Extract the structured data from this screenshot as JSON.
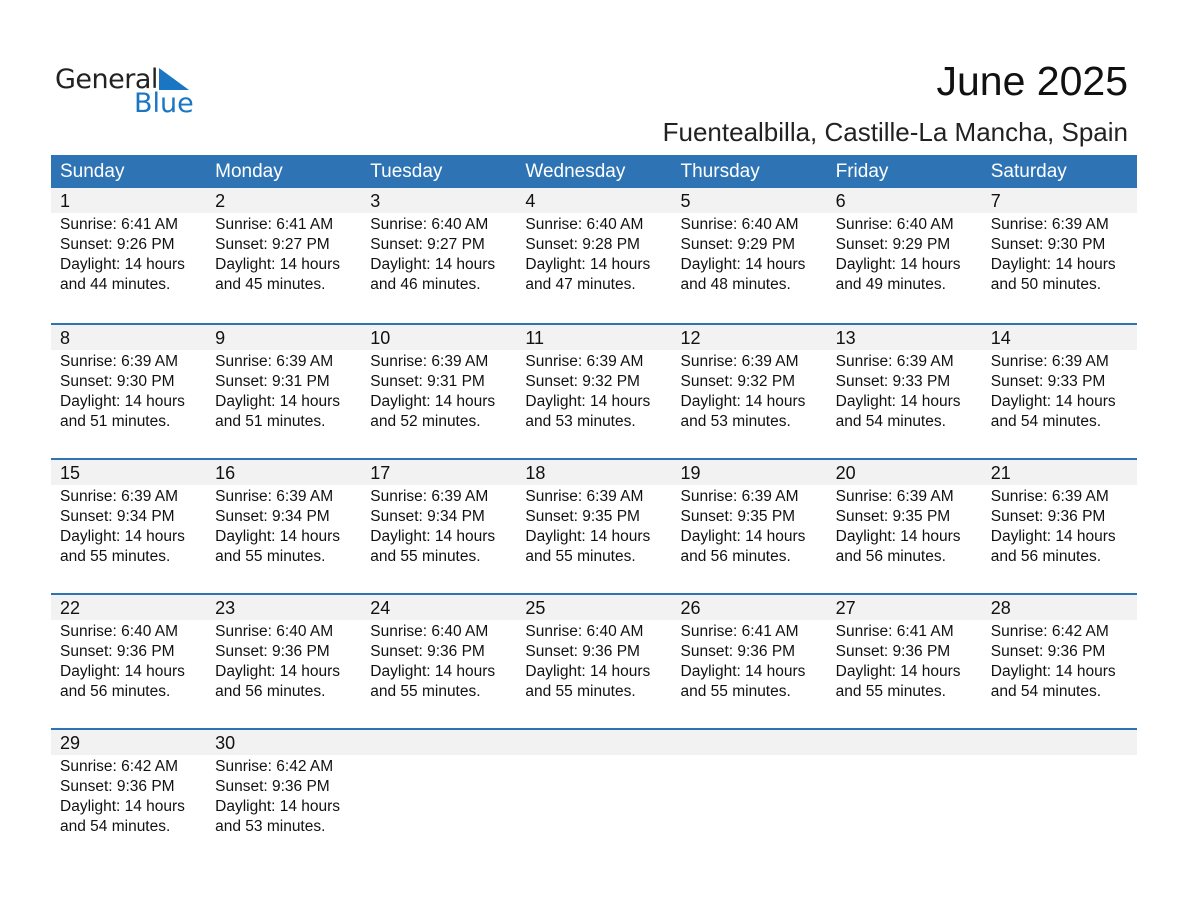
{
  "logo": {
    "line1": "General",
    "line2": "Blue",
    "accent": "#1a76c2"
  },
  "title": "June 2025",
  "subtitle": "Fuentealbilla, Castille-La Mancha, Spain",
  "colors": {
    "header": "#2e74b5",
    "band": "#f2f2f2"
  },
  "weekdays": [
    "Sunday",
    "Monday",
    "Tuesday",
    "Wednesday",
    "Thursday",
    "Friday",
    "Saturday"
  ],
  "weeks": [
    [
      {
        "day": "1",
        "sunrise": "Sunrise: 6:41 AM",
        "sunset": "Sunset: 9:26 PM",
        "daylight": "Daylight: 14 hours",
        "minutes": "and 44 minutes."
      },
      {
        "day": "2",
        "sunrise": "Sunrise: 6:41 AM",
        "sunset": "Sunset: 9:27 PM",
        "daylight": "Daylight: 14 hours",
        "minutes": "and 45 minutes."
      },
      {
        "day": "3",
        "sunrise": "Sunrise: 6:40 AM",
        "sunset": "Sunset: 9:27 PM",
        "daylight": "Daylight: 14 hours",
        "minutes": "and 46 minutes."
      },
      {
        "day": "4",
        "sunrise": "Sunrise: 6:40 AM",
        "sunset": "Sunset: 9:28 PM",
        "daylight": "Daylight: 14 hours",
        "minutes": "and 47 minutes."
      },
      {
        "day": "5",
        "sunrise": "Sunrise: 6:40 AM",
        "sunset": "Sunset: 9:29 PM",
        "daylight": "Daylight: 14 hours",
        "minutes": "and 48 minutes."
      },
      {
        "day": "6",
        "sunrise": "Sunrise: 6:40 AM",
        "sunset": "Sunset: 9:29 PM",
        "daylight": "Daylight: 14 hours",
        "minutes": "and 49 minutes."
      },
      {
        "day": "7",
        "sunrise": "Sunrise: 6:39 AM",
        "sunset": "Sunset: 9:30 PM",
        "daylight": "Daylight: 14 hours",
        "minutes": "and 50 minutes."
      }
    ],
    [
      {
        "day": "8",
        "sunrise": "Sunrise: 6:39 AM",
        "sunset": "Sunset: 9:30 PM",
        "daylight": "Daylight: 14 hours",
        "minutes": "and 51 minutes."
      },
      {
        "day": "9",
        "sunrise": "Sunrise: 6:39 AM",
        "sunset": "Sunset: 9:31 PM",
        "daylight": "Daylight: 14 hours",
        "minutes": "and 51 minutes."
      },
      {
        "day": "10",
        "sunrise": "Sunrise: 6:39 AM",
        "sunset": "Sunset: 9:31 PM",
        "daylight": "Daylight: 14 hours",
        "minutes": "and 52 minutes."
      },
      {
        "day": "11",
        "sunrise": "Sunrise: 6:39 AM",
        "sunset": "Sunset: 9:32 PM",
        "daylight": "Daylight: 14 hours",
        "minutes": "and 53 minutes."
      },
      {
        "day": "12",
        "sunrise": "Sunrise: 6:39 AM",
        "sunset": "Sunset: 9:32 PM",
        "daylight": "Daylight: 14 hours",
        "minutes": "and 53 minutes."
      },
      {
        "day": "13",
        "sunrise": "Sunrise: 6:39 AM",
        "sunset": "Sunset: 9:33 PM",
        "daylight": "Daylight: 14 hours",
        "minutes": "and 54 minutes."
      },
      {
        "day": "14",
        "sunrise": "Sunrise: 6:39 AM",
        "sunset": "Sunset: 9:33 PM",
        "daylight": "Daylight: 14 hours",
        "minutes": "and 54 minutes."
      }
    ],
    [
      {
        "day": "15",
        "sunrise": "Sunrise: 6:39 AM",
        "sunset": "Sunset: 9:34 PM",
        "daylight": "Daylight: 14 hours",
        "minutes": "and 55 minutes."
      },
      {
        "day": "16",
        "sunrise": "Sunrise: 6:39 AM",
        "sunset": "Sunset: 9:34 PM",
        "daylight": "Daylight: 14 hours",
        "minutes": "and 55 minutes."
      },
      {
        "day": "17",
        "sunrise": "Sunrise: 6:39 AM",
        "sunset": "Sunset: 9:34 PM",
        "daylight": "Daylight: 14 hours",
        "minutes": "and 55 minutes."
      },
      {
        "day": "18",
        "sunrise": "Sunrise: 6:39 AM",
        "sunset": "Sunset: 9:35 PM",
        "daylight": "Daylight: 14 hours",
        "minutes": "and 55 minutes."
      },
      {
        "day": "19",
        "sunrise": "Sunrise: 6:39 AM",
        "sunset": "Sunset: 9:35 PM",
        "daylight": "Daylight: 14 hours",
        "minutes": "and 56 minutes."
      },
      {
        "day": "20",
        "sunrise": "Sunrise: 6:39 AM",
        "sunset": "Sunset: 9:35 PM",
        "daylight": "Daylight: 14 hours",
        "minutes": "and 56 minutes."
      },
      {
        "day": "21",
        "sunrise": "Sunrise: 6:39 AM",
        "sunset": "Sunset: 9:36 PM",
        "daylight": "Daylight: 14 hours",
        "minutes": "and 56 minutes."
      }
    ],
    [
      {
        "day": "22",
        "sunrise": "Sunrise: 6:40 AM",
        "sunset": "Sunset: 9:36 PM",
        "daylight": "Daylight: 14 hours",
        "minutes": "and 56 minutes."
      },
      {
        "day": "23",
        "sunrise": "Sunrise: 6:40 AM",
        "sunset": "Sunset: 9:36 PM",
        "daylight": "Daylight: 14 hours",
        "minutes": "and 56 minutes."
      },
      {
        "day": "24",
        "sunrise": "Sunrise: 6:40 AM",
        "sunset": "Sunset: 9:36 PM",
        "daylight": "Daylight: 14 hours",
        "minutes": "and 55 minutes."
      },
      {
        "day": "25",
        "sunrise": "Sunrise: 6:40 AM",
        "sunset": "Sunset: 9:36 PM",
        "daylight": "Daylight: 14 hours",
        "minutes": "and 55 minutes."
      },
      {
        "day": "26",
        "sunrise": "Sunrise: 6:41 AM",
        "sunset": "Sunset: 9:36 PM",
        "daylight": "Daylight: 14 hours",
        "minutes": "and 55 minutes."
      },
      {
        "day": "27",
        "sunrise": "Sunrise: 6:41 AM",
        "sunset": "Sunset: 9:36 PM",
        "daylight": "Daylight: 14 hours",
        "minutes": "and 55 minutes."
      },
      {
        "day": "28",
        "sunrise": "Sunrise: 6:42 AM",
        "sunset": "Sunset: 9:36 PM",
        "daylight": "Daylight: 14 hours",
        "minutes": "and 54 minutes."
      }
    ],
    [
      {
        "day": "29",
        "sunrise": "Sunrise: 6:42 AM",
        "sunset": "Sunset: 9:36 PM",
        "daylight": "Daylight: 14 hours",
        "minutes": "and 54 minutes."
      },
      {
        "day": "30",
        "sunrise": "Sunrise: 6:42 AM",
        "sunset": "Sunset: 9:36 PM",
        "daylight": "Daylight: 14 hours",
        "minutes": "and 53 minutes."
      }
    ]
  ]
}
